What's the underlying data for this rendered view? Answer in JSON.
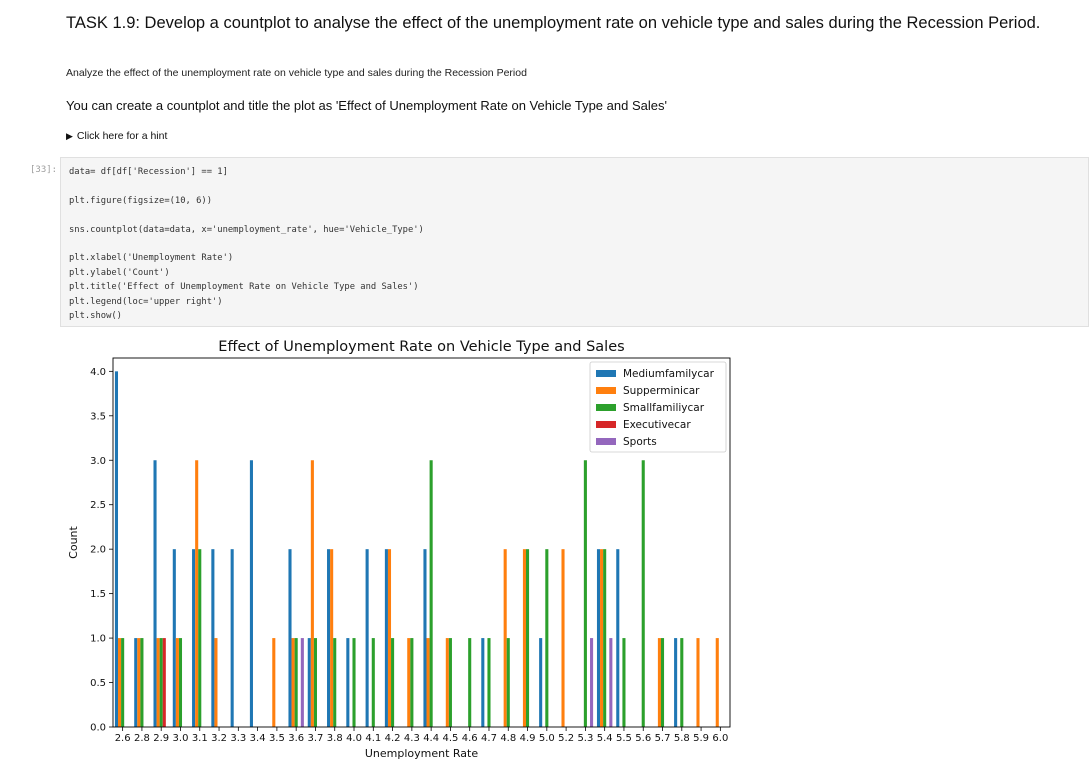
{
  "notebook": {
    "task_title": "TASK 1.9: Develop a countplot to analyse the effect of the unemployment rate on vehicle type and sales during the Recession Period.",
    "description": "Analyze the effect of the unemployment rate on vehicle type and sales during the Recession Period",
    "instruction": "You can create a countplot and title the plot as 'Effect of Unemployment Rate on Vehicle Type and Sales'",
    "hint_label": "Click here for a hint",
    "cell_prompt": "[33]:",
    "code_lines": [
      "data= df[df['Recession'] == 1]",
      "",
      "plt.figure(figsize=(10, 6))",
      "",
      "sns.countplot(data=data, x='unemployment_rate', hue='Vehicle_Type')",
      "",
      "plt.xlabel('Unemployment Rate')",
      "plt.ylabel('Count')",
      "plt.title('Effect of Unemployment Rate on Vehicle Type and Sales')",
      "plt.legend(loc='upper right')",
      "plt.show()"
    ]
  },
  "chart_data": {
    "type": "bar",
    "title": "Effect of Unemployment Rate on Vehicle Type and Sales",
    "xlabel": "Unemployment Rate",
    "ylabel": "Count",
    "ylim": [
      0,
      4.15
    ],
    "yticks": [
      "0.0",
      "0.5",
      "1.0",
      "1.5",
      "2.0",
      "2.5",
      "3.0",
      "3.5",
      "4.0"
    ],
    "legend_position": "upper right",
    "categories": [
      "2.6",
      "2.8",
      "2.9",
      "3.0",
      "3.1",
      "3.2",
      "3.3",
      "3.4",
      "3.5",
      "3.6",
      "3.7",
      "3.8",
      "4.0",
      "4.1",
      "4.2",
      "4.3",
      "4.4",
      "4.5",
      "4.6",
      "4.7",
      "4.8",
      "4.9",
      "5.0",
      "5.2",
      "5.3",
      "5.4",
      "5.5",
      "5.6",
      "5.7",
      "5.8",
      "5.9",
      "6.0"
    ],
    "series": [
      {
        "name": "Mediumfamilycar",
        "color": "#1f77b4",
        "values": [
          4,
          1,
          3,
          2,
          2,
          2,
          2,
          3,
          0,
          2,
          1,
          2,
          1,
          2,
          2,
          0,
          2,
          0,
          0,
          1,
          0,
          0,
          1,
          0,
          0,
          2,
          2,
          0,
          0,
          1,
          0,
          0
        ]
      },
      {
        "name": "Supperminicar",
        "color": "#ff7f0e",
        "values": [
          1,
          1,
          1,
          1,
          3,
          1,
          0,
          0,
          1,
          1,
          3,
          2,
          0,
          0,
          2,
          1,
          1,
          1,
          0,
          0,
          2,
          2,
          0,
          2,
          0,
          2,
          0,
          0,
          1,
          0,
          1,
          1
        ]
      },
      {
        "name": "Smallfamiliycar",
        "color": "#2ca02c",
        "values": [
          1,
          1,
          1,
          1,
          2,
          0,
          0,
          0,
          0,
          1,
          1,
          1,
          1,
          1,
          1,
          1,
          3,
          1,
          1,
          1,
          1,
          2,
          2,
          0,
          3,
          2,
          1,
          3,
          1,
          1,
          0,
          0
        ]
      },
      {
        "name": "Executivecar",
        "color": "#d62728",
        "values": [
          0,
          0,
          1,
          0,
          0,
          0,
          0,
          0,
          0,
          0,
          0,
          0,
          0,
          0,
          0,
          0,
          0,
          0,
          0,
          0,
          0,
          0,
          0,
          0,
          0,
          0,
          0,
          0,
          0,
          0,
          0,
          0
        ]
      },
      {
        "name": "Sports",
        "color": "#9467bd",
        "values": [
          0,
          0,
          0,
          0,
          0,
          0,
          0,
          0,
          0,
          1,
          0,
          0,
          0,
          0,
          0,
          0,
          0,
          0,
          0,
          0,
          0,
          0,
          0,
          0,
          1,
          1,
          0,
          0,
          0,
          0,
          0,
          0
        ]
      }
    ]
  }
}
